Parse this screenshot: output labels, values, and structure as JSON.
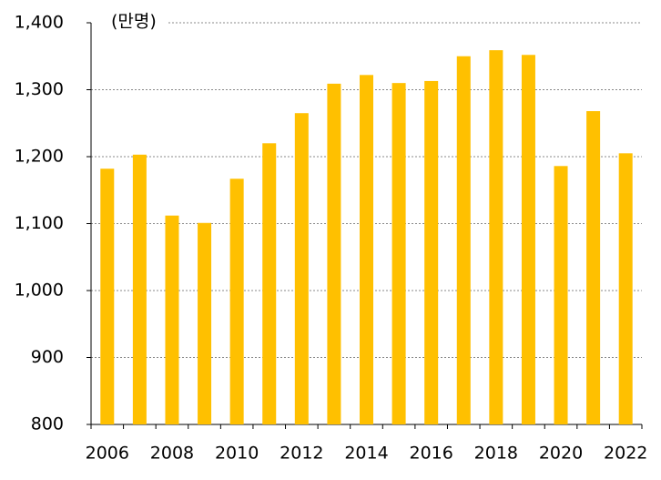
{
  "chart_data": {
    "type": "bar",
    "unit_label": "(만명)",
    "categories": [
      "2006",
      null,
      "2008",
      null,
      "2010",
      null,
      "2012",
      null,
      "2014",
      null,
      "2016",
      null,
      "2018",
      null,
      "2020",
      null,
      "2022"
    ],
    "values": [
      1182,
      1203,
      1112,
      1101,
      1167,
      1220,
      1265,
      1309,
      1322,
      1310,
      1313,
      1350,
      1359,
      1352,
      1186,
      1268,
      1205
    ],
    "color": "#ffc000",
    "ylim": [
      800,
      1400
    ],
    "yticks": [
      800,
      900,
      {
        "value": 1000,
        "label": "1,000"
      },
      {
        "value": 1100,
        "label": "1,100"
      },
      {
        "value": 1200,
        "label": "1,200"
      },
      {
        "value": 1300,
        "label": "1,300"
      },
      {
        "value": 1400,
        "label": "1,400"
      }
    ],
    "grid": true
  }
}
